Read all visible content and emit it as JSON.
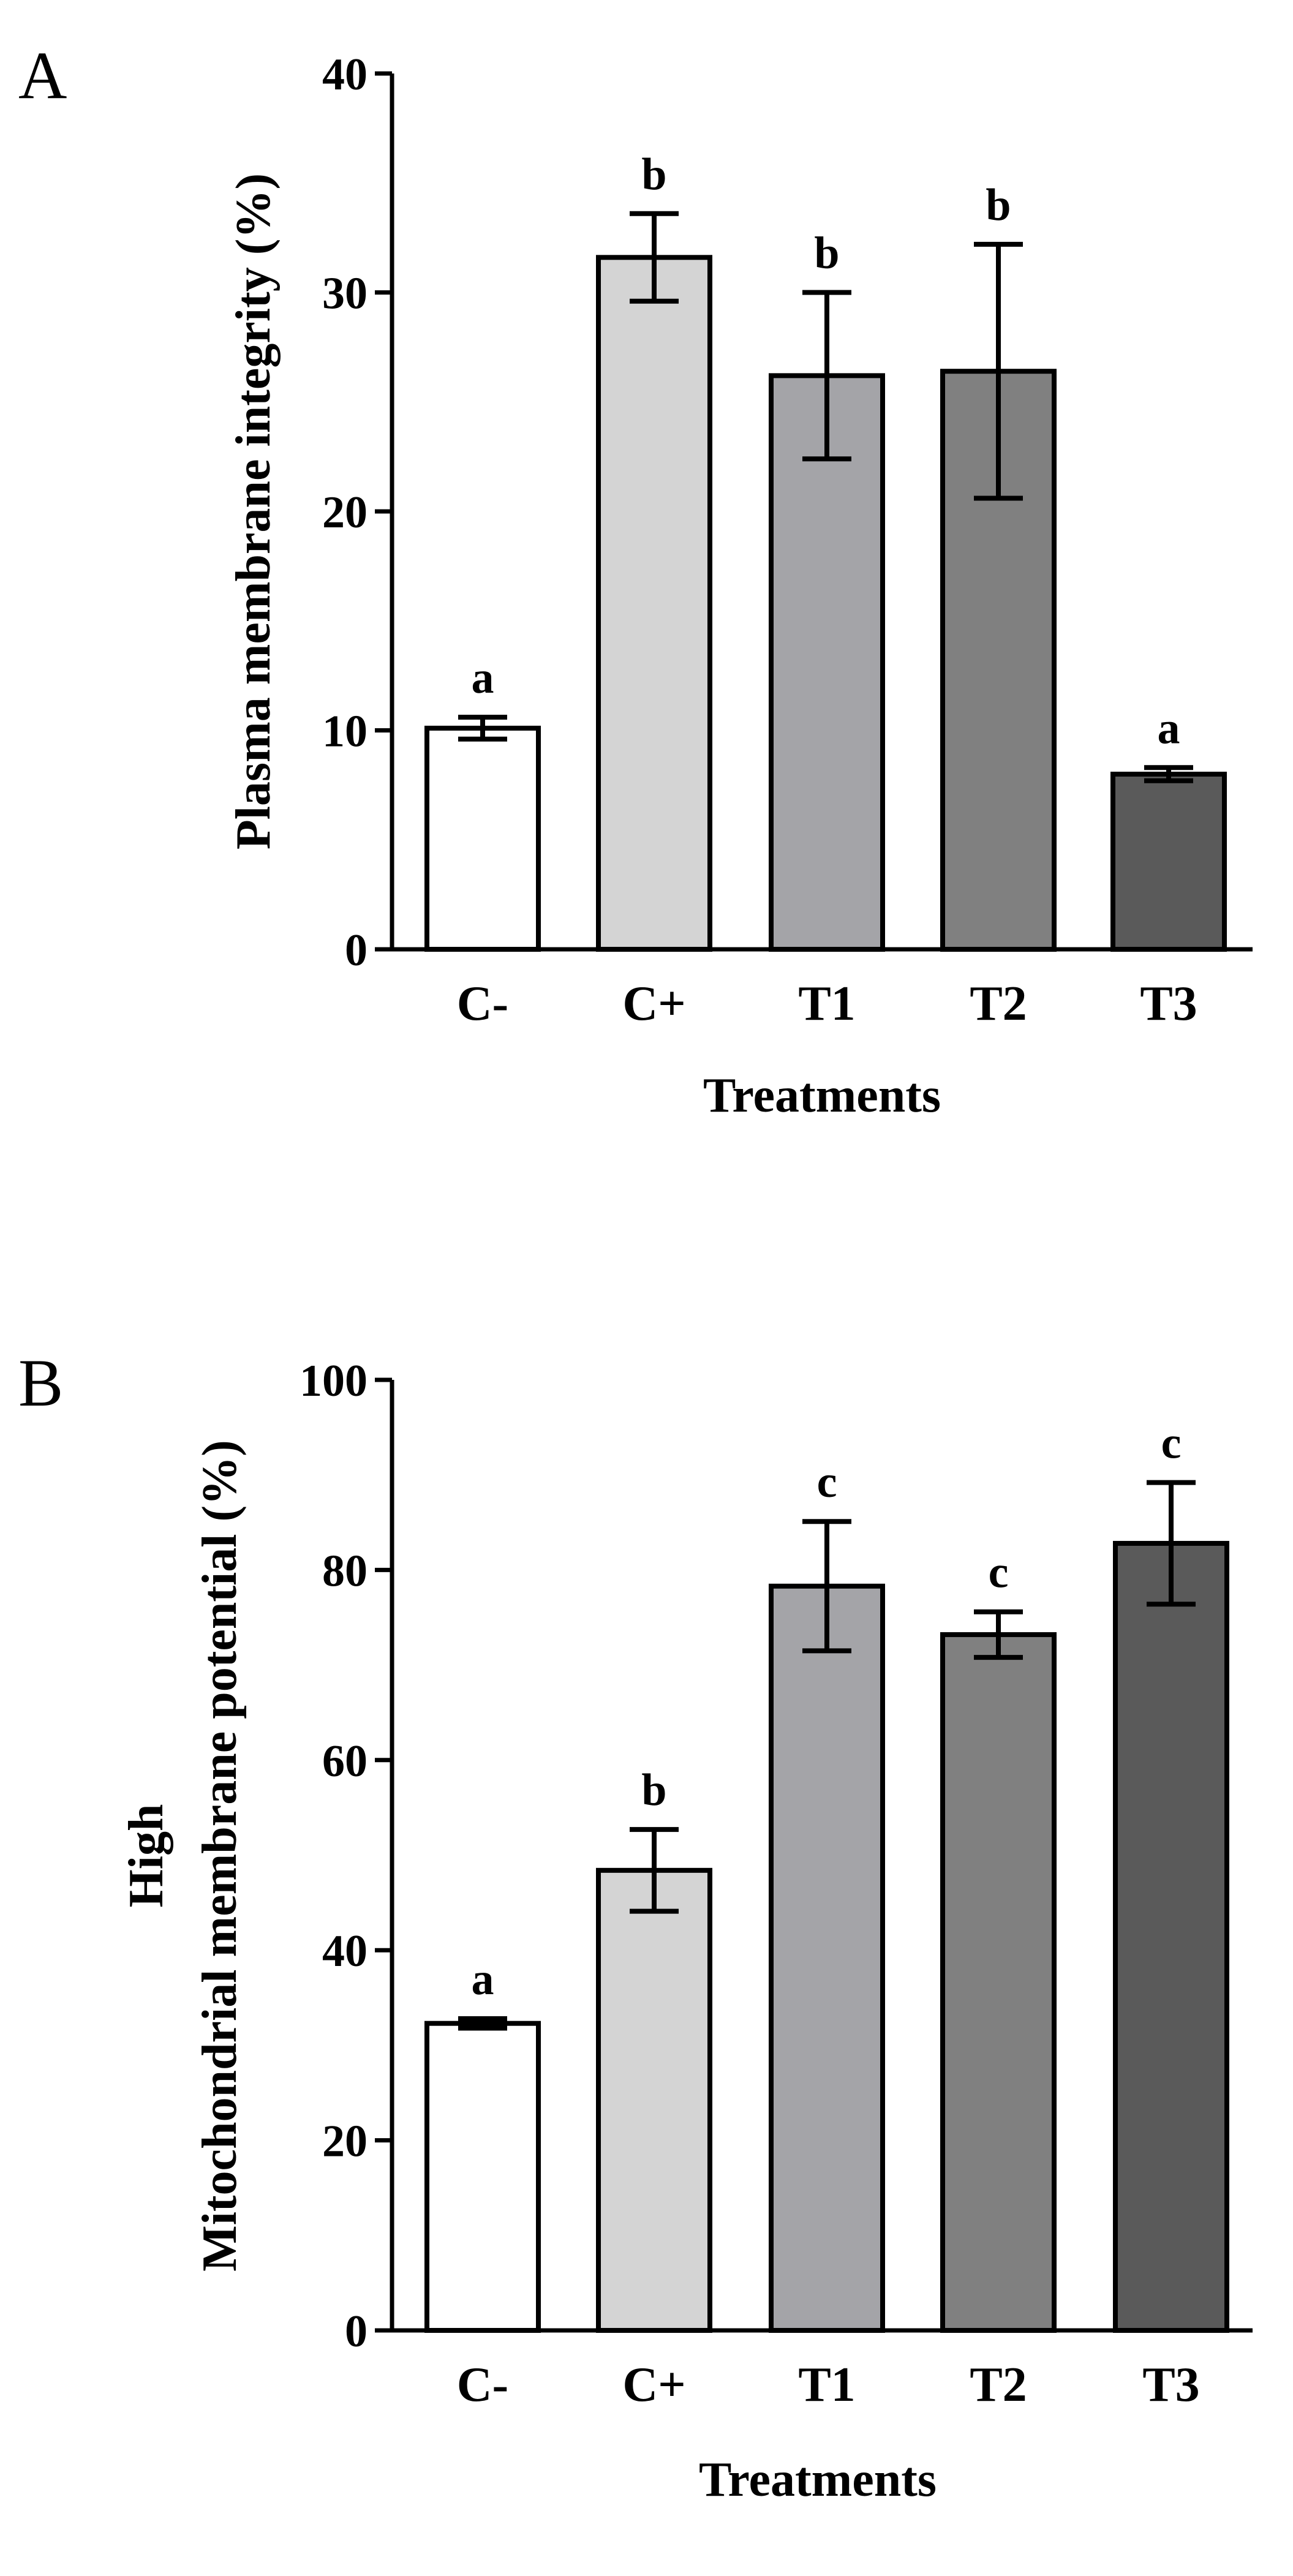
{
  "colors": {
    "bar_fills": [
      "#ffffff",
      "#d4d4d4",
      "#a4a4a8",
      "#808080",
      "#5a5a5a"
    ],
    "stroke": "#000000"
  },
  "chart_data": [
    {
      "panel": "A",
      "type": "bar",
      "title": "",
      "xlabel": "Treatments",
      "ylabel": "Plasma membrane integrity (%)",
      "ylim": [
        0,
        40
      ],
      "yticks": [
        0,
        10,
        20,
        30,
        40
      ],
      "categories": [
        "C-",
        "C+",
        "T1",
        "T2",
        "T3"
      ],
      "values": [
        10.1,
        31.6,
        26.2,
        26.4,
        8.0
      ],
      "errors": [
        0.5,
        2.0,
        3.8,
        5.8,
        0.3
      ],
      "significance": [
        "a",
        "b",
        "b",
        "b",
        "a"
      ]
    },
    {
      "panel": "B",
      "type": "bar",
      "title": "",
      "xlabel": "Treatments",
      "ylabel": "High Mitochondrial membrane potential (%)",
      "ylabel_lines": [
        "High",
        "Mitochondrial membrane potential (%)"
      ],
      "ylim": [
        0,
        100
      ],
      "yticks": [
        0,
        20,
        40,
        60,
        80,
        100
      ],
      "categories": [
        "C-",
        "C+",
        "T1",
        "T2",
        "T3"
      ],
      "values": [
        32.3,
        48.4,
        78.3,
        73.2,
        82.8
      ],
      "errors": [
        0.5,
        4.3,
        6.8,
        2.4,
        6.4
      ],
      "significance": [
        "a",
        "b",
        "c",
        "c",
        "c"
      ]
    }
  ]
}
